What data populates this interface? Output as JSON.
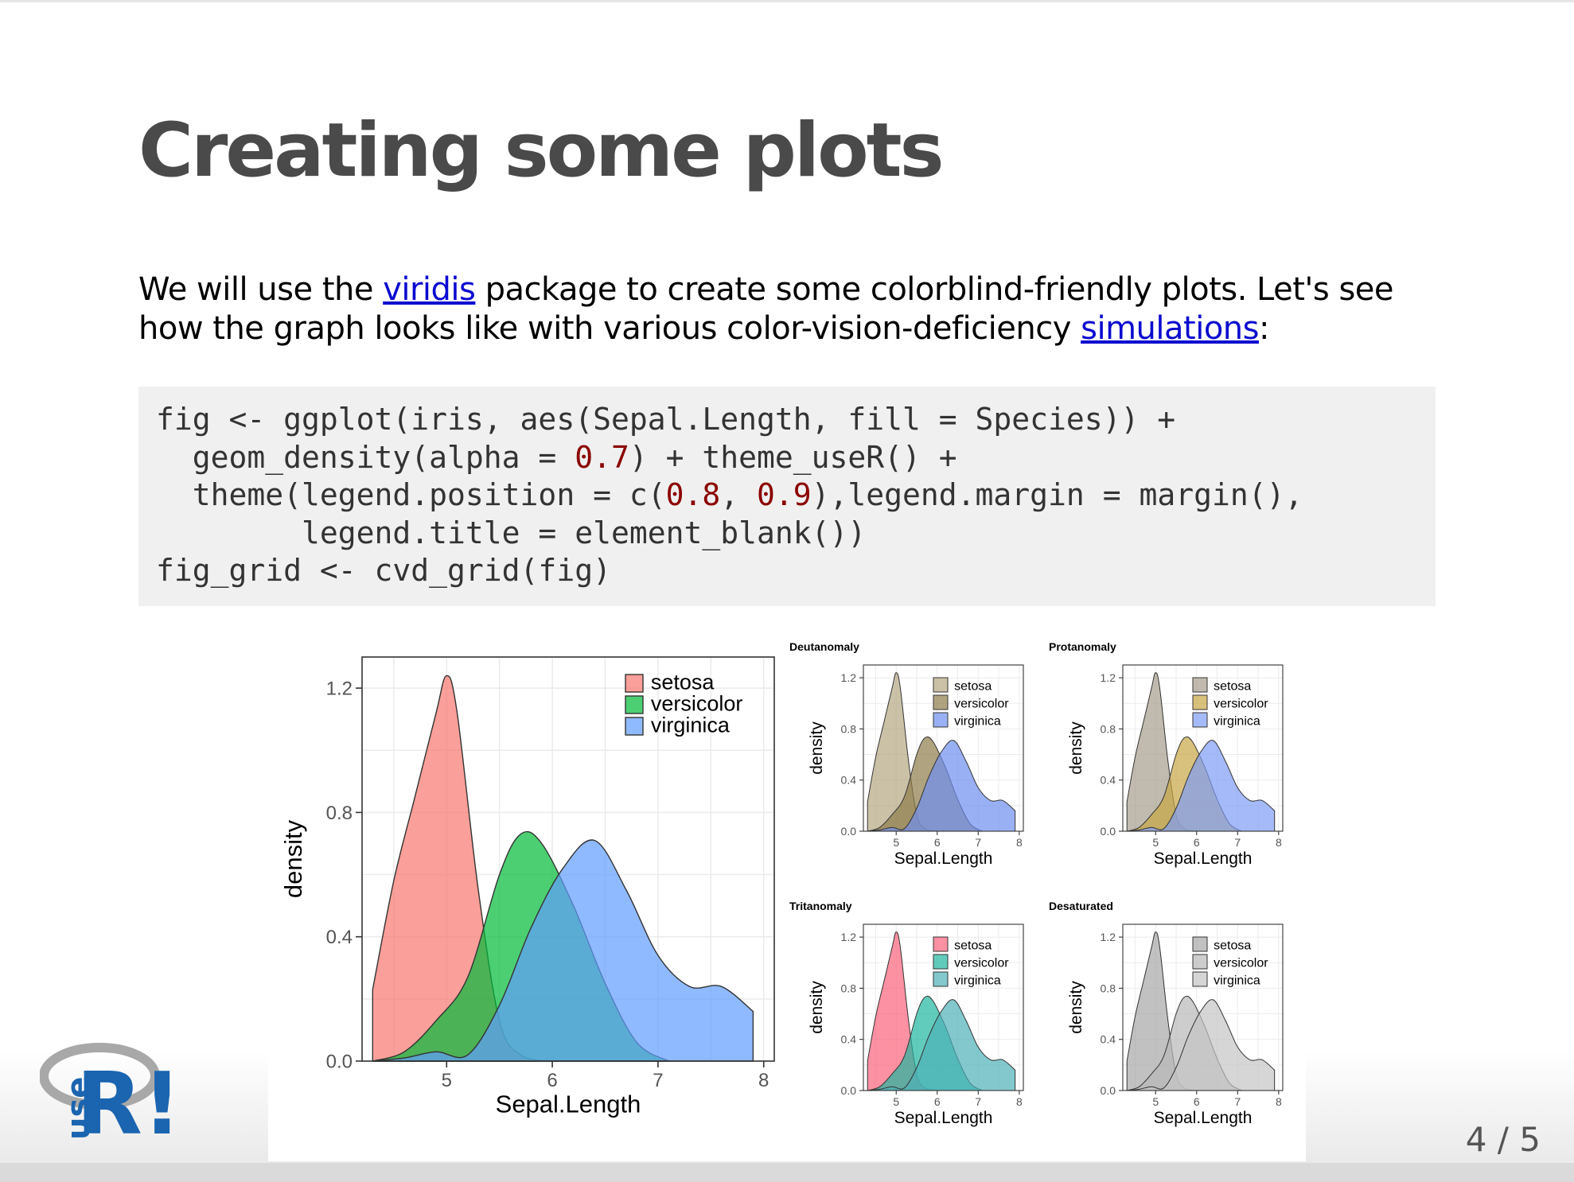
{
  "slide": {
    "title": "Creating some plots",
    "paragraph": {
      "before_link1": "We will use the ",
      "link1": "viridis",
      "after_link1": " package to create some colorblind-friendly plots. Let's see how the graph looks like with various color-vision-deficiency ",
      "link2": "simulations",
      "after_link2": ":"
    },
    "code": {
      "l1": "fig <- ggplot(iris, aes(Sepal.Length, fill = Species)) +",
      "l2a": "  geom_density(alpha = ",
      "l2num": "0.7",
      "l2b": ") + theme_useR() +",
      "l3a": "  theme(legend.position = c(",
      "l3num1": "0.8",
      "l3sep": ", ",
      "l3num2": "0.9",
      "l3b": "),legend.margin = margin(),",
      "l4": "        legend.title = element_blank())",
      "l5": "fig_grid <- cvd_grid(fig)"
    },
    "page_number": "4 / 5",
    "logo_text": "useR!"
  },
  "chart_data": [
    {
      "type": "area",
      "panel": "main",
      "title": "",
      "xlabel": "Sepal.Length",
      "ylabel": "density",
      "xlim": [
        4.2,
        8.1
      ],
      "ylim": [
        0,
        1.3
      ],
      "xticks": [
        "5",
        "6",
        "7",
        "8"
      ],
      "yticks": [
        "0.0",
        "0.4",
        "0.8",
        "1.2"
      ],
      "grid": true,
      "legend_position": "top-right",
      "series": [
        {
          "name": "setosa",
          "color": "#f8766d",
          "x": [
            4.3,
            4.5,
            4.7,
            4.9,
            5.0,
            5.1,
            5.3,
            5.5,
            5.7,
            6.0
          ],
          "y": [
            0.23,
            0.58,
            0.85,
            1.12,
            1.24,
            1.12,
            0.55,
            0.13,
            0.02,
            0.0
          ]
        },
        {
          "name": "versicolor",
          "color": "#00ba38",
          "x": [
            4.3,
            4.6,
            4.9,
            5.2,
            5.5,
            5.7,
            5.9,
            6.2,
            6.5,
            6.8,
            7.1
          ],
          "y": [
            0.0,
            0.03,
            0.13,
            0.27,
            0.6,
            0.73,
            0.7,
            0.5,
            0.25,
            0.06,
            0.0
          ]
        },
        {
          "name": "virginica",
          "color": "#619cff",
          "x": [
            4.3,
            4.6,
            4.9,
            5.2,
            5.5,
            5.8,
            6.1,
            6.4,
            6.7,
            7.0,
            7.3,
            7.6,
            7.9
          ],
          "y": [
            0.0,
            0.01,
            0.03,
            0.02,
            0.18,
            0.43,
            0.62,
            0.71,
            0.55,
            0.34,
            0.24,
            0.24,
            0.16
          ]
        }
      ]
    },
    {
      "type": "area",
      "panel": "small",
      "title": "Deutanomaly",
      "xlabel": "Sepal.Length",
      "ylabel": "density",
      "xticks": [
        "5",
        "6",
        "7",
        "8"
      ],
      "yticks": [
        "0.0",
        "0.4",
        "0.8",
        "1.2"
      ],
      "series": [
        {
          "name": "setosa",
          "color": "#b3a782"
        },
        {
          "name": "versicolor",
          "color": "#8f7c4a"
        },
        {
          "name": "virginica",
          "color": "#6f8ff0"
        }
      ]
    },
    {
      "type": "area",
      "panel": "small",
      "title": "Protanomaly",
      "xlabel": "Sepal.Length",
      "ylabel": "density",
      "xticks": [
        "5",
        "6",
        "7",
        "8"
      ],
      "yticks": [
        "0.0",
        "0.4",
        "0.8",
        "1.2"
      ],
      "series": [
        {
          "name": "setosa",
          "color": "#a59e8c"
        },
        {
          "name": "versicolor",
          "color": "#c7a744"
        },
        {
          "name": "virginica",
          "color": "#7f9cf5"
        }
      ]
    },
    {
      "type": "area",
      "panel": "small",
      "title": "Tritanomaly",
      "xlabel": "Sepal.Length",
      "ylabel": "density",
      "xticks": [
        "5",
        "6",
        "7",
        "8"
      ],
      "yticks": [
        "0.0",
        "0.4",
        "0.8",
        "1.2"
      ],
      "series": [
        {
          "name": "setosa",
          "color": "#f9637a"
        },
        {
          "name": "versicolor",
          "color": "#1fb6a0"
        },
        {
          "name": "virginica",
          "color": "#4fb0b8"
        }
      ]
    },
    {
      "type": "area",
      "panel": "small",
      "title": "Desaturated",
      "xlabel": "Sepal.Length",
      "ylabel": "density",
      "xticks": [
        "5",
        "6",
        "7",
        "8"
      ],
      "yticks": [
        "0.0",
        "0.4",
        "0.8",
        "1.2"
      ],
      "series": [
        {
          "name": "setosa",
          "color": "#a6a6a6"
        },
        {
          "name": "versicolor",
          "color": "#b8b8b8"
        },
        {
          "name": "virginica",
          "color": "#c4c4c4"
        }
      ]
    }
  ]
}
